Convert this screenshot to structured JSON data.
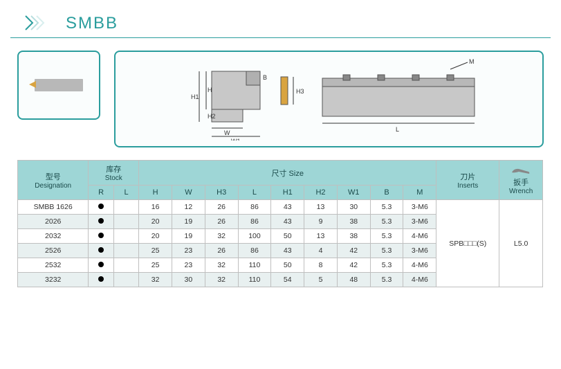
{
  "header": {
    "title": "SMBB"
  },
  "diagrams": {
    "labels": {
      "H": "H",
      "H1": "H1",
      "H2": "H2",
      "W": "W",
      "W1": "W1",
      "B": "B",
      "H3": "H3",
      "M": "M",
      "L": "L"
    }
  },
  "table": {
    "groupHeaders": {
      "designation": {
        "cn": "型号",
        "en": "Designation"
      },
      "stock": {
        "cn": "库存",
        "en": "Stock"
      },
      "size": {
        "cn": "尺寸 Size"
      },
      "inserts": {
        "cn": "刀片",
        "en": "Inserts"
      },
      "wrench": {
        "cn": "扳手",
        "en": "Wrench"
      }
    },
    "subHeaders": [
      "R",
      "L",
      "H",
      "W",
      "H3",
      "L",
      "H1",
      "H2",
      "W1",
      "B",
      "M"
    ],
    "rows": [
      {
        "name": "SMBB 1626",
        "R": true,
        "L": false,
        "H": "16",
        "W": "12",
        "H3": "26",
        "Ld": "86",
        "H1": "43",
        "H2": "13",
        "W1": "30",
        "B": "5.3",
        "M": "3-M6"
      },
      {
        "name": "2026",
        "R": true,
        "L": false,
        "H": "20",
        "W": "19",
        "H3": "26",
        "Ld": "86",
        "H1": "43",
        "H2": "9",
        "W1": "38",
        "B": "5.3",
        "M": "3-M6"
      },
      {
        "name": "2032",
        "R": true,
        "L": false,
        "H": "20",
        "W": "19",
        "H3": "32",
        "Ld": "100",
        "H1": "50",
        "H2": "13",
        "W1": "38",
        "B": "5.3",
        "M": "4-M6"
      },
      {
        "name": "2526",
        "R": true,
        "L": false,
        "H": "25",
        "W": "23",
        "H3": "26",
        "Ld": "86",
        "H1": "43",
        "H2": "4",
        "W1": "42",
        "B": "5.3",
        "M": "3-M6"
      },
      {
        "name": "2532",
        "R": true,
        "L": false,
        "H": "25",
        "W": "23",
        "H3": "32",
        "Ld": "110",
        "H1": "50",
        "H2": "8",
        "W1": "42",
        "B": "5.3",
        "M": "4-M6"
      },
      {
        "name": "3232",
        "R": true,
        "L": false,
        "H": "32",
        "W": "30",
        "H3": "32",
        "Ld": "110",
        "H1": "54",
        "H2": "5",
        "W1": "48",
        "B": "5.3",
        "M": "4-M6"
      }
    ],
    "insertsValue": "SPB□□□(S)",
    "wrenchValue": "L5.0"
  },
  "colors": {
    "accent": "#2a9d9d",
    "headerBg": "#9ed6d6",
    "altRow": "#e8f0f0",
    "border": "#bfbfbf"
  }
}
